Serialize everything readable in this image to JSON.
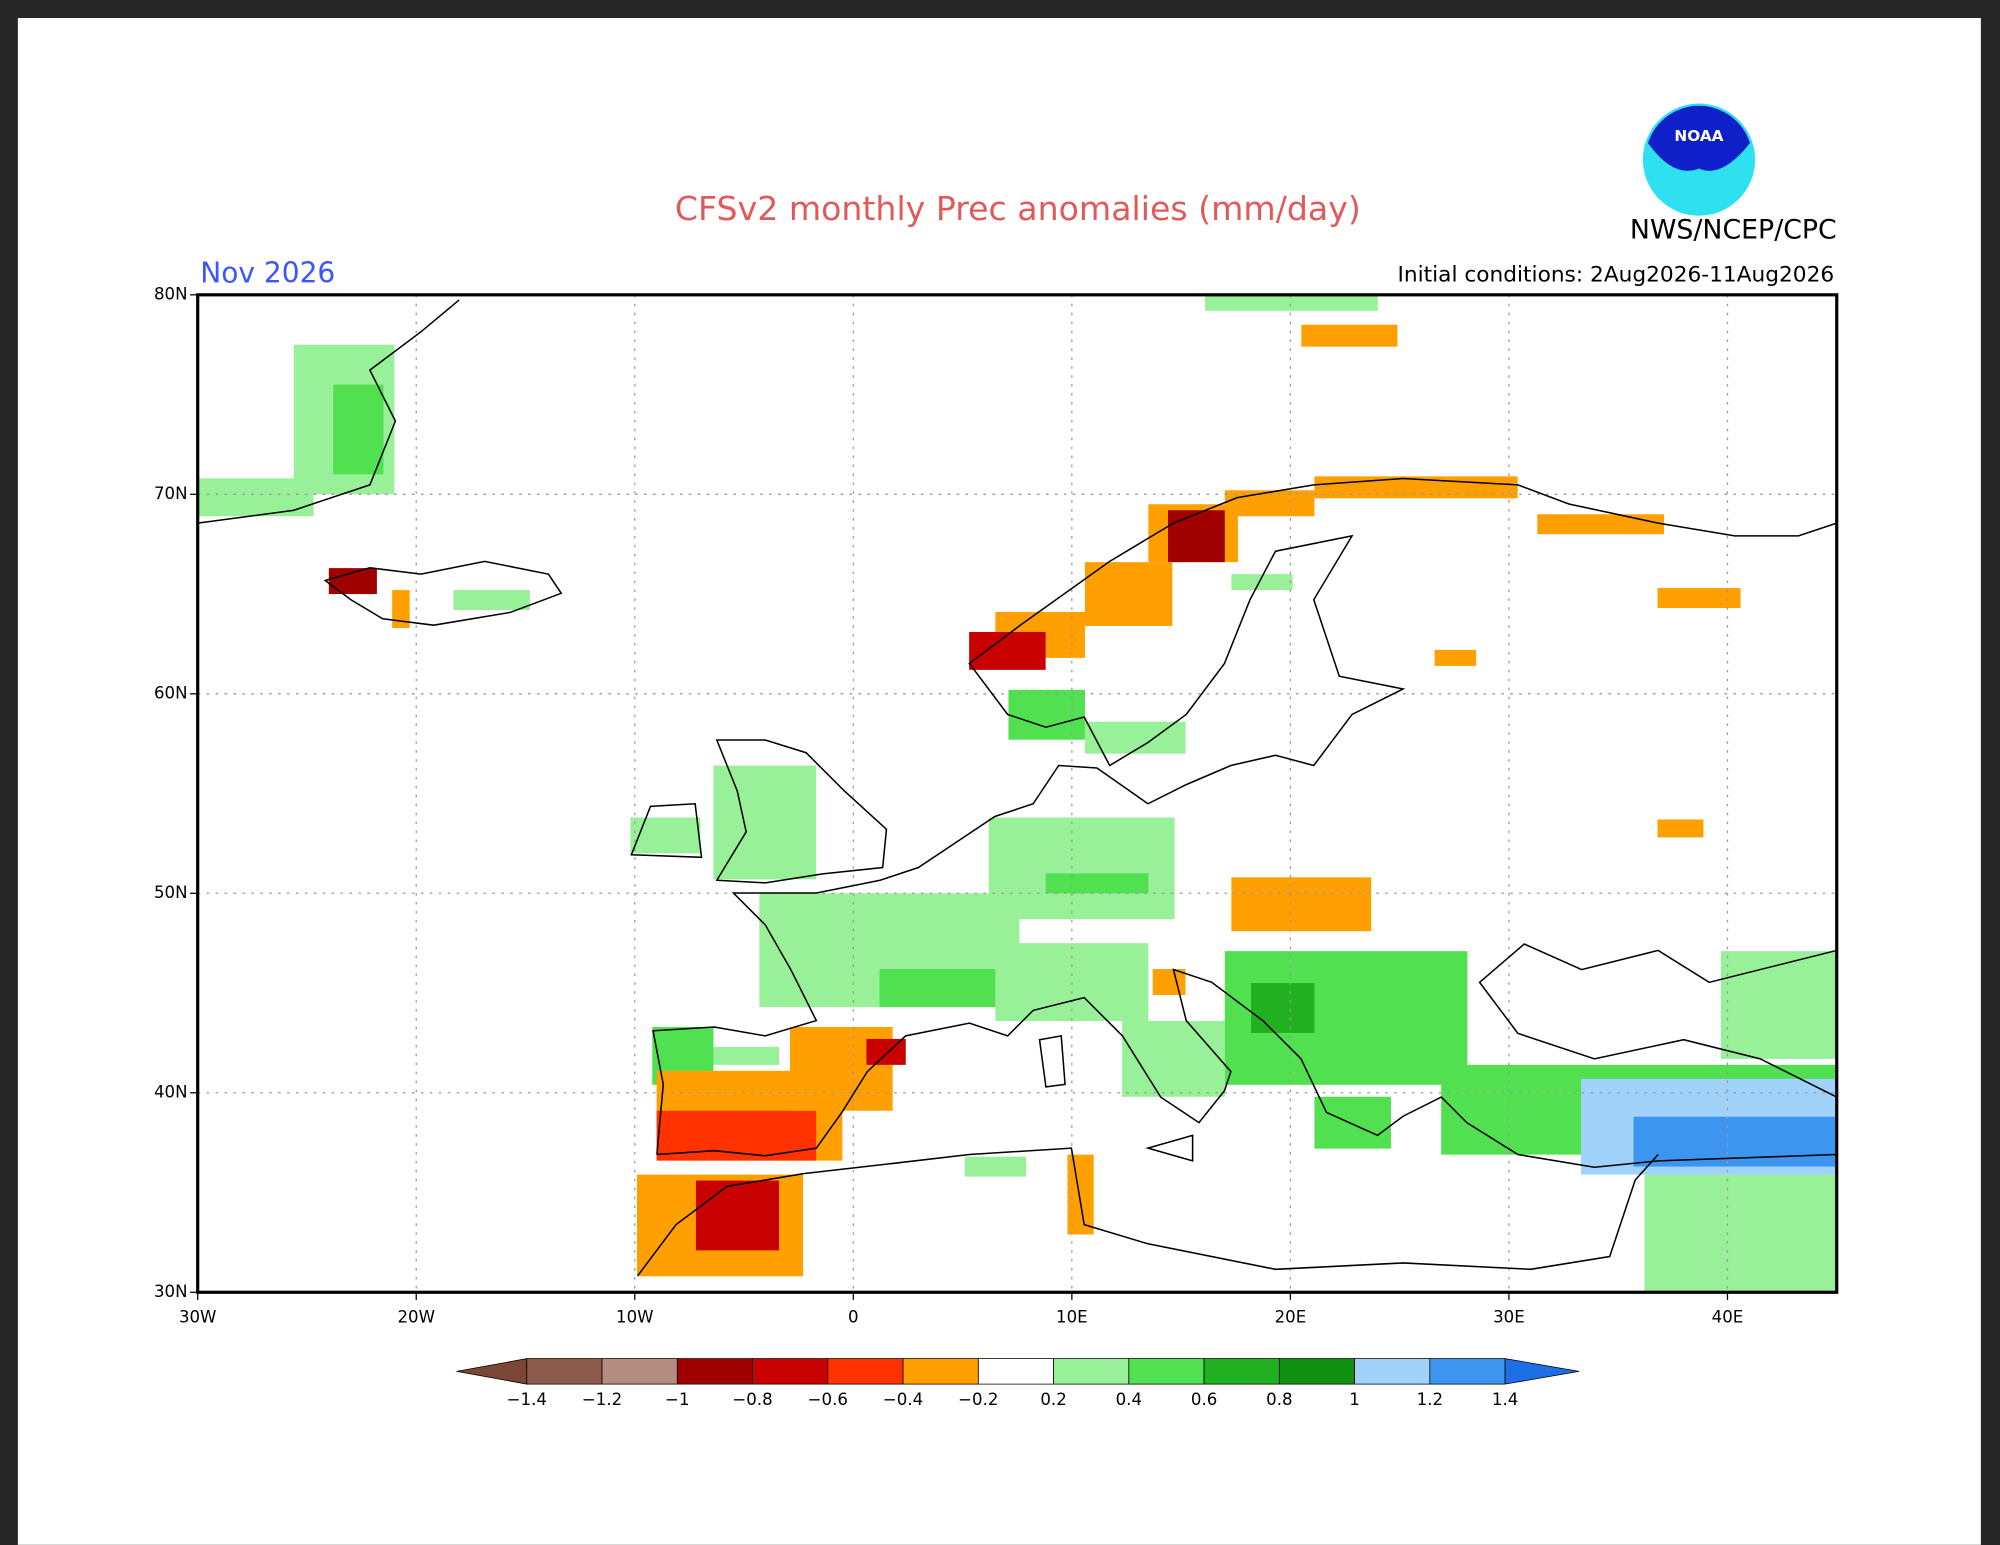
{
  "title": "CFSv2 monthly Prec anomalies (mm/day)",
  "month": "Nov 2026",
  "agency": "NWS/NCEP/CPC",
  "logo": "NOAA",
  "initial_conditions": "Initial conditions: 2Aug2026-11Aug2026",
  "map": {
    "xlim": [
      -30,
      45
    ],
    "ylim": [
      30,
      80
    ],
    "grid": true,
    "xticks": [
      {
        "value": -30,
        "label": "30W"
      },
      {
        "value": -20,
        "label": "20W"
      },
      {
        "value": -10,
        "label": "10W"
      },
      0,
      {
        "value": 10,
        "label": "10E"
      },
      {
        "value": 20,
        "label": "20E"
      },
      {
        "value": 30,
        "label": "30E"
      },
      {
        "value": 40,
        "label": "40E"
      }
    ],
    "yticks": [
      {
        "value": 30,
        "label": "30N"
      },
      {
        "value": 40,
        "label": "40N"
      },
      {
        "value": 50,
        "label": "50N"
      },
      {
        "value": 60,
        "label": "60N"
      },
      {
        "value": 70,
        "label": "70N"
      },
      {
        "value": 80,
        "label": "80N"
      }
    ],
    "colorbar": {
      "levels": [
        {
          "value": -1.4,
          "label": "−1.4"
        },
        {
          "value": -1.2,
          "label": "−1.2"
        },
        {
          "value": -1,
          "label": "−1"
        },
        {
          "value": -0.8,
          "label": "−0.8"
        },
        {
          "value": -0.6,
          "label": "−0.6"
        },
        {
          "value": -0.4,
          "label": "−0.4"
        },
        {
          "value": -0.2,
          "label": "−0.2"
        },
        0.2,
        0.4,
        0.6,
        0.8,
        1,
        1.2,
        1.4
      ],
      "colors": [
        "#7a4636",
        "#8c5a4a",
        "#b48c80",
        "#a00000",
        "#c80000",
        "#ff3200",
        "#ffa000",
        "#ffffff",
        "#98f098",
        "#50e050",
        "#20b020",
        "#109010",
        "#a0d2fa",
        "#3c96f0",
        "#1e6ee6"
      ]
    },
    "anomalies": [
      {
        "lon": [
          -25.6,
          -21
        ],
        "lat": [
          70,
          77.5
        ],
        "value": 0.3
      },
      {
        "lon": [
          -23.8,
          -21.5
        ],
        "lat": [
          71,
          75.5
        ],
        "value": 0.5
      },
      {
        "lon": [
          -30,
          -24.7
        ],
        "lat": [
          68.9,
          70.8
        ],
        "value": 0.3
      },
      {
        "lon": [
          -24,
          -21.8
        ],
        "lat": [
          65,
          66.3
        ],
        "value": -0.9
      },
      {
        "lon": [
          -21.1,
          -20.3
        ],
        "lat": [
          63.3,
          65.2
        ],
        "value": -0.3
      },
      {
        "lon": [
          -18.3,
          -14.8
        ],
        "lat": [
          64.2,
          65.2
        ],
        "value": 0.3
      },
      {
        "lon": [
          16.1,
          24
        ],
        "lat": [
          79.2,
          80
        ],
        "value": 0.3
      },
      {
        "lon": [
          20.5,
          24.9
        ],
        "lat": [
          77.4,
          78.5
        ],
        "value": -0.3
      },
      {
        "lon": [
          6.5,
          10.6
        ],
        "lat": [
          61.8,
          64.1
        ],
        "value": -0.3
      },
      {
        "lon": [
          5.3,
          8.8
        ],
        "lat": [
          61.2,
          63.1
        ],
        "value": -0.7
      },
      {
        "lon": [
          10.6,
          14.6
        ],
        "lat": [
          63.4,
          66.6
        ],
        "value": -0.3
      },
      {
        "lon": [
          13.5,
          17.6
        ],
        "lat": [
          66.6,
          69.5
        ],
        "value": -0.3
      },
      {
        "lon": [
          14.4,
          17
        ],
        "lat": [
          66.6,
          69.2
        ],
        "value": -0.9
      },
      {
        "lon": [
          17,
          21.1
        ],
        "lat": [
          68.9,
          70.2
        ],
        "value": -0.3
      },
      {
        "lon": [
          21.1,
          30.4
        ],
        "lat": [
          69.8,
          70.9
        ],
        "value": -0.3
      },
      {
        "lon": [
          31.3,
          37.1
        ],
        "lat": [
          68,
          69
        ],
        "value": -0.3
      },
      {
        "lon": [
          36.8,
          40.6
        ],
        "lat": [
          64.3,
          65.3
        ],
        "value": -0.3
      },
      {
        "lon": [
          26.6,
          28.5
        ],
        "lat": [
          61.4,
          62.2
        ],
        "value": -0.3
      },
      {
        "lon": [
          36.8,
          38.9
        ],
        "lat": [
          52.8,
          53.7
        ],
        "value": -0.3
      },
      {
        "lon": [
          7.1,
          10.6
        ],
        "lat": [
          57.7,
          60.2
        ],
        "value": 0.5
      },
      {
        "lon": [
          10.6,
          15.2
        ],
        "lat": [
          57,
          58.6
        ],
        "value": 0.3
      },
      {
        "lon": [
          17.3,
          20.1
        ],
        "lat": [
          65.2,
          66
        ],
        "value": 0.3
      },
      {
        "lon": [
          -10.2,
          -7
        ],
        "lat": [
          52,
          53.8
        ],
        "value": 0.3
      },
      {
        "lon": [
          -6.4,
          -1.7
        ],
        "lat": [
          50.7,
          56.4
        ],
        "value": 0.3
      },
      {
        "lon": [
          6.2,
          14.7
        ],
        "lat": [
          48.7,
          53.8
        ],
        "value": 0.3
      },
      {
        "lon": [
          8.8,
          13.5
        ],
        "lat": [
          50,
          51
        ],
        "value": 0.5
      },
      {
        "lon": [
          -4.3,
          7.6
        ],
        "lat": [
          44.3,
          50
        ],
        "value": 0.3
      },
      {
        "lon": [
          1.2,
          6.5
        ],
        "lat": [
          44.3,
          46.2
        ],
        "value": 0.5
      },
      {
        "lon": [
          6.5,
          13.5
        ],
        "lat": [
          43.6,
          47.5
        ],
        "value": 0.3
      },
      {
        "lon": [
          12.3,
          17
        ],
        "lat": [
          39.8,
          43.6
        ],
        "value": 0.3
      },
      {
        "lon": [
          17,
          28.1
        ],
        "lat": [
          40.4,
          47.1
        ],
        "value": 0.5
      },
      {
        "lon": [
          18.2,
          21.1
        ],
        "lat": [
          43,
          45.5
        ],
        "value": 0.7
      },
      {
        "lon": [
          21.1,
          24.6
        ],
        "lat": [
          37.2,
          39.8
        ],
        "value": 0.5
      },
      {
        "lon": [
          26.9,
          45
        ],
        "lat": [
          36.9,
          41.4
        ],
        "value": 0.5
      },
      {
        "lon": [
          33.3,
          45
        ],
        "lat": [
          35.9,
          40.7
        ],
        "value": 1.1
      },
      {
        "lon": [
          35.7,
          45
        ],
        "lat": [
          36.3,
          38.8
        ],
        "value": 1.3
      },
      {
        "lon": [
          39.7,
          45
        ],
        "lat": [
          41.7,
          47.1
        ],
        "value": 0.3
      },
      {
        "lon": [
          36.2,
          45
        ],
        "lat": [
          30,
          35.9
        ],
        "value": 0.4
      },
      {
        "lon": [
          -9.2,
          -6.4
        ],
        "lat": [
          40.4,
          43.3
        ],
        "value": 0.5
      },
      {
        "lon": [
          -6.4,
          -3.4
        ],
        "lat": [
          41.4,
          42.3
        ],
        "value": 0.3
      },
      {
        "lon": [
          -9,
          -0.5
        ],
        "lat": [
          36.6,
          41.1
        ],
        "value": -0.3
      },
      {
        "lon": [
          -9,
          -1.7
        ],
        "lat": [
          36.6,
          39.1
        ],
        "value": -0.5
      },
      {
        "lon": [
          -2.9,
          1.8
        ],
        "lat": [
          39.1,
          43.3
        ],
        "value": -0.3
      },
      {
        "lon": [
          0.6,
          2.4
        ],
        "lat": [
          41.4,
          42.7
        ],
        "value": -0.7
      },
      {
        "lon": [
          -9.9,
          -2.3
        ],
        "lat": [
          30.8,
          35.9
        ],
        "value": -0.3
      },
      {
        "lon": [
          -7.2,
          -3.4
        ],
        "lat": [
          32.1,
          35.6
        ],
        "value": -0.6
      },
      {
        "lon": [
          9.8,
          11
        ],
        "lat": [
          32.9,
          36.9
        ],
        "value": -0.3
      },
      {
        "lon": [
          5.1,
          7.9
        ],
        "lat": [
          35.8,
          36.8
        ],
        "value": 0.3
      },
      {
        "lon": [
          17.3,
          23.7
        ],
        "lat": [
          48.1,
          50.8
        ],
        "value": -0.3
      },
      {
        "lon": [
          13.7,
          15.2
        ],
        "lat": [
          44.9,
          46.2
        ],
        "value": -0.3
      }
    ]
  }
}
